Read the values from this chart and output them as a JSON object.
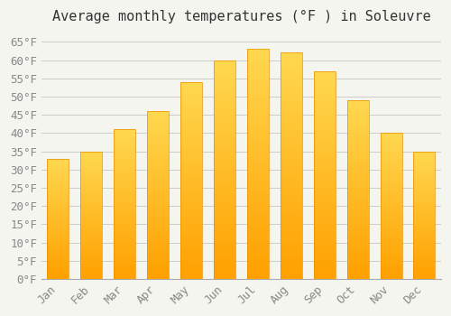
{
  "title": "Average monthly temperatures (°F ) in Soleuvre",
  "months": [
    "Jan",
    "Feb",
    "Mar",
    "Apr",
    "May",
    "Jun",
    "Jul",
    "Aug",
    "Sep",
    "Oct",
    "Nov",
    "Dec"
  ],
  "values": [
    33,
    35,
    41,
    46,
    54,
    60,
    63,
    62,
    57,
    49,
    40,
    35
  ],
  "bar_color_top": "#FFD060",
  "bar_color_bottom": "#FFA000",
  "bar_edge_color": "#E89000",
  "background_color": "#f5f5f0",
  "plot_bg_color": "#f5f5f0",
  "grid_color": "#cccccc",
  "title_fontsize": 11,
  "tick_fontsize": 9,
  "ylim_min": 0,
  "ylim_max": 68,
  "ytick_step": 5,
  "ylabel_suffix": "°F",
  "tick_color": "#888888"
}
